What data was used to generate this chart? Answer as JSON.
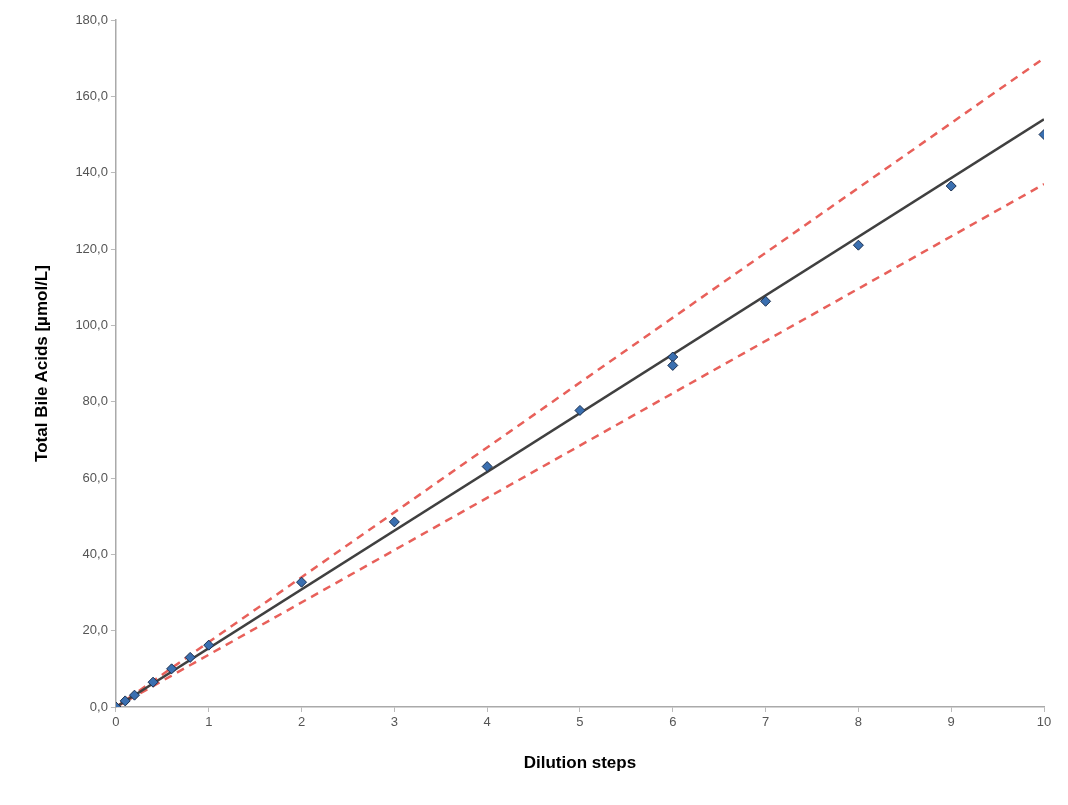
{
  "chart_data": {
    "type": "scatter",
    "xlabel": "Dilution steps",
    "ylabel": "Total Bile Acids [µmol/L]",
    "xlim": [
      0,
      10
    ],
    "xticks": [
      0,
      1,
      2,
      3,
      4,
      5,
      6,
      7,
      8,
      9,
      10
    ],
    "ylim": [
      0,
      180
    ],
    "yticks": [
      {
        "value": 0,
        "label": "0,0"
      },
      {
        "value": 20,
        "label": "20,0"
      },
      {
        "value": 40,
        "label": "40,0"
      },
      {
        "value": 60,
        "label": "60,0"
      },
      {
        "value": 80,
        "label": "80,0"
      },
      {
        "value": 100,
        "label": "100,0"
      },
      {
        "value": 120,
        "label": "120,0"
      },
      {
        "value": 140,
        "label": "140,0"
      },
      {
        "value": 160,
        "label": "160,0"
      },
      {
        "value": 180,
        "label": "180,0"
      }
    ],
    "grid": false,
    "legend": false,
    "series": [
      {
        "type": "scatter",
        "color": "#3a6fb0",
        "marker": "diamond",
        "x": [
          0,
          0.1,
          0.2,
          0.4,
          0.6,
          0.8,
          1,
          2,
          3,
          4,
          5,
          6,
          6,
          7,
          8,
          9,
          10
        ],
        "values": [
          0,
          1.6,
          3.1,
          6.5,
          10,
          13,
          16.2,
          32.7,
          48.5,
          63,
          77.7,
          91.7,
          89.5,
          106.3,
          121,
          136.5,
          150
        ]
      },
      {
        "type": "line",
        "color": "#404040",
        "line_style": "solid",
        "marker": "none",
        "x": [
          0,
          10
        ],
        "values": [
          0,
          154
        ]
      },
      {
        "type": "line",
        "color": "#e8605a",
        "line_style": "dashed",
        "marker": "none",
        "x": [
          0,
          10
        ],
        "values": [
          0,
          170
        ]
      },
      {
        "type": "line",
        "color": "#e8605a",
        "line_style": "dashed",
        "marker": "none",
        "x": [
          0,
          10
        ],
        "values": [
          0,
          137
        ]
      }
    ]
  }
}
